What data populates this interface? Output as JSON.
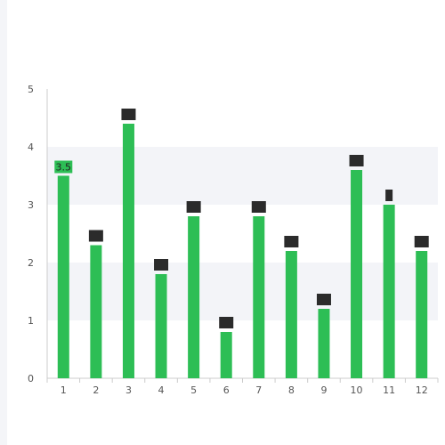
{
  "colors": {
    "bar": "#2dbe55",
    "band": "#f3f4f8",
    "axis": "#cccccc",
    "label_box": "#2b2b2b",
    "first_label_box": "#2dbe55"
  },
  "chart_data": {
    "type": "bar",
    "categories": [
      "1",
      "2",
      "3",
      "4",
      "5",
      "6",
      "7",
      "8",
      "9",
      "10",
      "11",
      "12"
    ],
    "values": [
      3.5,
      2.3,
      4.4,
      1.8,
      2.8,
      0.8,
      2.8,
      2.2,
      1.2,
      3.6,
      3.0,
      2.2
    ],
    "yticks": [
      "0",
      "1",
      "2",
      "3",
      "4",
      "5"
    ],
    "ylim": [
      0,
      5
    ],
    "title": "",
    "xlabel": "",
    "ylabel": "",
    "grid": "alternating horizontal bands",
    "data_labels": {
      "visible_text_index": 0,
      "visible_text": "3.5"
    }
  }
}
